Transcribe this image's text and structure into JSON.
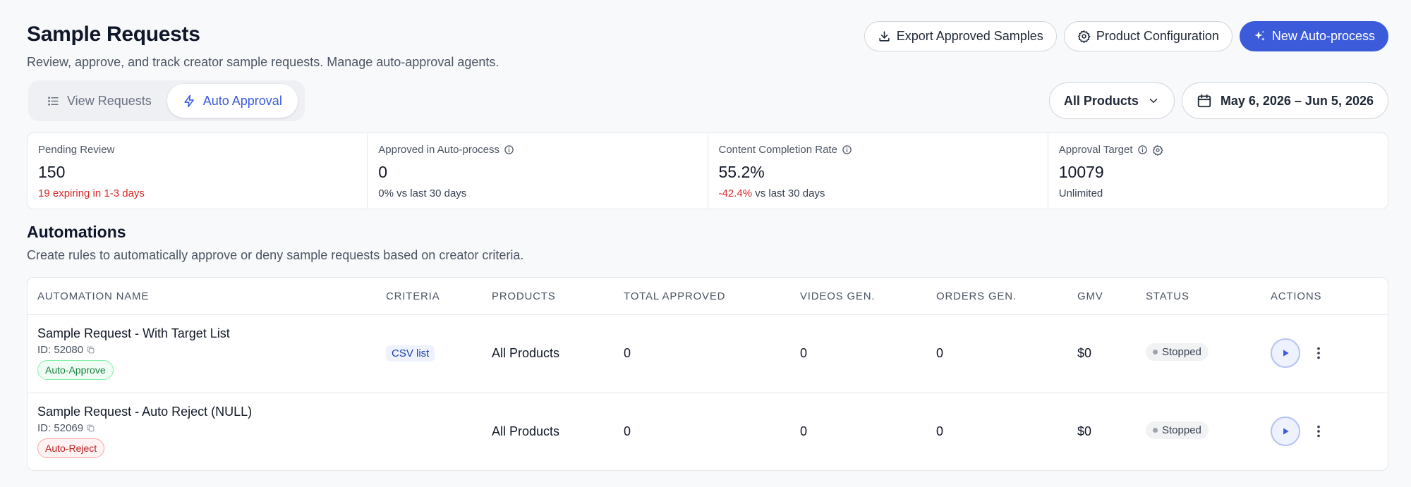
{
  "header": {
    "title": "Sample Requests",
    "subtitle": "Review, approve, and track creator sample requests. Manage auto-approval agents.",
    "export_label": "Export Approved Samples",
    "config_label": "Product Configuration",
    "new_label": "New Auto-process"
  },
  "tabs": {
    "view_requests": "View Requests",
    "auto_approval": "Auto Approval"
  },
  "filters": {
    "products": "All Products",
    "date_range": "May 6, 2026 – Jun 5, 2026"
  },
  "stats": [
    {
      "label": "Pending Review",
      "value": "150",
      "sub_highlight": "19 expiring in 1-3 days",
      "sub": ""
    },
    {
      "label": "Approved in Auto-process",
      "value": "0",
      "sub_highlight": "",
      "sub": "0% vs last 30 days"
    },
    {
      "label": "Content Completion Rate",
      "value": "55.2%",
      "sub_highlight": "-42.4%",
      "sub": "vs last 30 days"
    },
    {
      "label": "Approval Target",
      "value": "10079",
      "sub_highlight": "",
      "sub": "Unlimited"
    }
  ],
  "automations": {
    "title": "Automations",
    "subtitle": "Create rules to automatically approve or deny sample requests based on creator criteria.",
    "columns": [
      "Automation Name",
      "Criteria",
      "Products",
      "Total Approved",
      "Videos Gen.",
      "Orders Gen.",
      "GMV",
      "Status",
      "Actions"
    ],
    "rows": [
      {
        "name": "Sample Request - With Target List",
        "id": "ID: 52080",
        "badge": "Auto-Approve",
        "criteria": "CSV list",
        "products": "All Products",
        "total_approved": "0",
        "videos": "0",
        "orders": "0",
        "gmv": "$0",
        "status": "Stopped"
      },
      {
        "name": "Sample Request - Auto Reject (NULL)",
        "id": "ID: 52069",
        "badge": "Auto-Reject",
        "criteria": "",
        "products": "All Products",
        "total_approved": "0",
        "videos": "0",
        "orders": "0",
        "gmv": "$0",
        "status": "Stopped"
      }
    ]
  },
  "colors": {
    "accent": "#3b5bdb",
    "negative": "#dc2626",
    "approve": "#15803d",
    "reject": "#b91c1c"
  }
}
